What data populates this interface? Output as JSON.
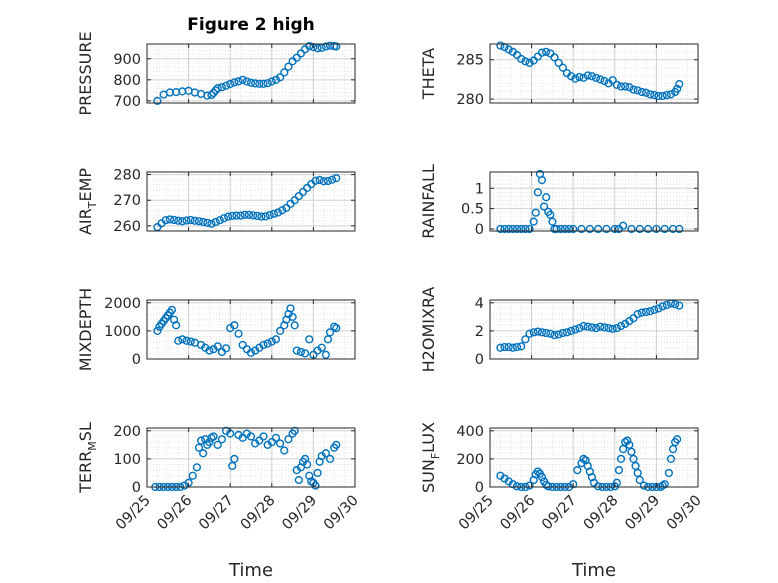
{
  "figure_title": "Figure 2 high",
  "colors": {
    "marker": "#0072bd",
    "axis": "#262626",
    "grid": "#d0d0d0",
    "minor_grid": "#e4e4e4"
  },
  "x_axis": {
    "label": "Time",
    "range": [
      0,
      5
    ],
    "tick_labels": [
      "09/25",
      "09/26",
      "09/27",
      "09/28",
      "09/29",
      "09/30"
    ]
  },
  "chart_data": [
    {
      "type": "scatter",
      "id": "pressure",
      "title": "Figure 2 high",
      "ylabel": "PRESSURE",
      "ylabel_sub": "",
      "ylabel_tail": "",
      "ylim": [
        690,
        970
      ],
      "yticks": [
        700,
        800,
        900
      ],
      "x": [
        0.25,
        0.4,
        0.55,
        0.7,
        0.85,
        1.0,
        1.15,
        1.3,
        1.45,
        1.55,
        1.6,
        1.65,
        1.7,
        1.8,
        1.9,
        2.0,
        2.1,
        2.2,
        2.3,
        2.4,
        2.5,
        2.6,
        2.7,
        2.8,
        2.9,
        3.0,
        3.1,
        3.2,
        3.3,
        3.4,
        3.5,
        3.6,
        3.7,
        3.8,
        3.9,
        4.0,
        4.1,
        4.2,
        4.3,
        4.4,
        4.5,
        4.55
      ],
      "y": [
        700,
        730,
        740,
        742,
        745,
        748,
        740,
        733,
        725,
        728,
        738,
        750,
        760,
        765,
        772,
        780,
        788,
        793,
        800,
        792,
        786,
        783,
        781,
        781,
        784,
        792,
        800,
        812,
        835,
        862,
        888,
        905,
        925,
        945,
        960,
        955,
        950,
        952,
        958,
        962,
        960,
        958
      ]
    },
    {
      "type": "scatter",
      "id": "theta",
      "title": "",
      "ylabel": "THETA",
      "ylabel_sub": "",
      "ylabel_tail": "",
      "ylim": [
        279.5,
        287
      ],
      "yticks": [
        280,
        285
      ],
      "x": [
        0.25,
        0.35,
        0.45,
        0.55,
        0.65,
        0.75,
        0.85,
        0.95,
        1.05,
        1.15,
        1.25,
        1.35,
        1.45,
        1.55,
        1.65,
        1.75,
        1.85,
        1.95,
        2.05,
        2.15,
        2.25,
        2.35,
        2.45,
        2.55,
        2.65,
        2.75,
        2.85,
        2.95,
        3.05,
        3.15,
        3.25,
        3.35,
        3.45,
        3.55,
        3.65,
        3.75,
        3.85,
        3.95,
        4.05,
        4.15,
        4.25,
        4.35,
        4.45,
        4.5,
        4.55
      ],
      "y": [
        286.8,
        286.6,
        286.3,
        286.0,
        285.6,
        285.1,
        284.8,
        284.6,
        284.9,
        285.4,
        285.9,
        286.0,
        285.8,
        285.3,
        284.6,
        284.0,
        283.3,
        282.9,
        282.6,
        282.8,
        282.7,
        283.0,
        282.9,
        282.7,
        282.5,
        282.3,
        282.0,
        282.4,
        281.8,
        281.6,
        281.6,
        281.5,
        281.2,
        281.1,
        280.9,
        280.8,
        280.6,
        280.5,
        280.4,
        280.4,
        280.5,
        280.6,
        280.9,
        281.3,
        281.9
      ]
    },
    {
      "type": "scatter",
      "id": "air-temp",
      "title": "",
      "ylabel": "AIR",
      "ylabel_sub": "T",
      "ylabel_tail": "EMP",
      "ylim": [
        258,
        281
      ],
      "yticks": [
        260,
        270,
        280
      ],
      "x": [
        0.25,
        0.35,
        0.45,
        0.55,
        0.65,
        0.75,
        0.85,
        0.95,
        1.05,
        1.15,
        1.25,
        1.35,
        1.45,
        1.55,
        1.65,
        1.75,
        1.85,
        1.95,
        2.05,
        2.15,
        2.25,
        2.35,
        2.45,
        2.55,
        2.65,
        2.75,
        2.85,
        2.95,
        3.05,
        3.15,
        3.25,
        3.35,
        3.45,
        3.55,
        3.65,
        3.75,
        3.85,
        3.95,
        4.05,
        4.15,
        4.25,
        4.35,
        4.45,
        4.55
      ],
      "y": [
        259.5,
        261,
        262.2,
        262.5,
        262.3,
        262.0,
        261.8,
        262.1,
        262.3,
        262.0,
        261.8,
        261.5,
        261.2,
        260.8,
        261.5,
        262.2,
        263.0,
        263.6,
        263.9,
        264.0,
        264.0,
        264.3,
        264.3,
        264.1,
        263.9,
        263.6,
        263.7,
        264.2,
        264.7,
        265.2,
        266.1,
        267.0,
        268.6,
        270.0,
        271.6,
        273.2,
        274.8,
        276.3,
        277.6,
        277.9,
        277.4,
        277.5,
        278.0,
        278.6
      ]
    },
    {
      "type": "scatter",
      "id": "rainfall",
      "title": "",
      "ylabel": "RAINFALL",
      "ylabel_sub": "",
      "ylabel_tail": "",
      "ylim": [
        -0.05,
        1.4
      ],
      "yticks": [
        0,
        0.5,
        1
      ],
      "x": [
        0.25,
        0.35,
        0.45,
        0.55,
        0.65,
        0.75,
        0.85,
        0.95,
        1.05,
        1.1,
        1.15,
        1.2,
        1.25,
        1.3,
        1.35,
        1.4,
        1.45,
        1.5,
        1.55,
        1.6,
        1.7,
        1.8,
        1.9,
        2.0,
        2.2,
        2.4,
        2.6,
        2.8,
        3.0,
        3.1,
        3.2,
        3.4,
        3.6,
        3.8,
        4.0,
        4.2,
        4.4,
        4.55
      ],
      "y": [
        0,
        0,
        0,
        0,
        0,
        0,
        0,
        0,
        0.18,
        0.4,
        0.9,
        1.35,
        1.2,
        0.55,
        0.78,
        0.42,
        0.35,
        0.18,
        0,
        0,
        0,
        0,
        0,
        0,
        0,
        0,
        0,
        0,
        0,
        0,
        0.08,
        0,
        0,
        0,
        0,
        0,
        0,
        0
      ]
    },
    {
      "type": "scatter",
      "id": "mixdepth",
      "title": "",
      "ylabel": "MIXDEPTH",
      "ylabel_sub": "",
      "ylabel_tail": "",
      "ylim": [
        0,
        2100
      ],
      "yticks": [
        0,
        1000,
        2000
      ],
      "x": [
        0.25,
        0.3,
        0.35,
        0.4,
        0.45,
        0.5,
        0.55,
        0.6,
        0.65,
        0.7,
        0.75,
        0.85,
        0.95,
        1.05,
        1.15,
        1.3,
        1.4,
        1.5,
        1.6,
        1.7,
        1.8,
        1.9,
        2.0,
        2.1,
        2.2,
        2.3,
        2.4,
        2.5,
        2.6,
        2.7,
        2.8,
        2.9,
        3.0,
        3.1,
        3.2,
        3.3,
        3.35,
        3.4,
        3.45,
        3.5,
        3.55,
        3.6,
        3.7,
        3.8,
        3.9,
        4.0,
        4.1,
        4.2,
        4.3,
        4.35,
        4.4,
        4.5,
        4.55
      ],
      "y": [
        1000,
        1150,
        1250,
        1350,
        1450,
        1550,
        1650,
        1750,
        1400,
        1200,
        650,
        700,
        650,
        620,
        580,
        500,
        400,
        300,
        350,
        450,
        250,
        380,
        1100,
        1200,
        900,
        500,
        350,
        220,
        300,
        400,
        500,
        550,
        620,
        700,
        1000,
        1200,
        1400,
        1600,
        1800,
        1500,
        1200,
        300,
        250,
        200,
        700,
        150,
        300,
        400,
        150,
        700,
        950,
        1150,
        1100
      ]
    },
    {
      "type": "scatter",
      "id": "h2omixra",
      "title": "",
      "ylabel": "H2OMIXRA",
      "ylabel_sub": "",
      "ylabel_tail": "",
      "ylim": [
        0,
        4.2
      ],
      "yticks": [
        0,
        2,
        4
      ],
      "x": [
        0.25,
        0.35,
        0.45,
        0.55,
        0.65,
        0.75,
        0.85,
        0.95,
        1.05,
        1.15,
        1.25,
        1.35,
        1.45,
        1.55,
        1.65,
        1.75,
        1.85,
        1.95,
        2.05,
        2.15,
        2.25,
        2.35,
        2.45,
        2.55,
        2.65,
        2.75,
        2.85,
        2.95,
        3.05,
        3.15,
        3.25,
        3.35,
        3.45,
        3.55,
        3.65,
        3.75,
        3.85,
        3.95,
        4.05,
        4.15,
        4.25,
        4.35,
        4.45,
        4.55
      ],
      "y": [
        0.8,
        0.85,
        0.85,
        0.8,
        0.85,
        0.9,
        1.4,
        1.8,
        1.9,
        1.95,
        1.9,
        1.85,
        1.8,
        1.7,
        1.75,
        1.85,
        1.9,
        2.0,
        2.1,
        2.2,
        2.35,
        2.3,
        2.25,
        2.2,
        2.3,
        2.25,
        2.2,
        2.15,
        2.2,
        2.35,
        2.5,
        2.7,
        2.9,
        3.2,
        3.3,
        3.35,
        3.4,
        3.5,
        3.6,
        3.75,
        3.85,
        3.95,
        3.9,
        3.8
      ]
    },
    {
      "type": "scatter",
      "id": "terr-msl",
      "title": "",
      "ylabel": "TERR",
      "ylabel_sub": "M",
      "ylabel_tail": "SL",
      "ylim": [
        0,
        210
      ],
      "yticks": [
        0,
        100,
        200
      ],
      "x": [
        0.2,
        0.3,
        0.4,
        0.5,
        0.6,
        0.7,
        0.8,
        0.9,
        1.0,
        1.1,
        1.2,
        1.25,
        1.3,
        1.35,
        1.4,
        1.45,
        1.5,
        1.55,
        1.6,
        1.7,
        1.8,
        1.9,
        2.0,
        2.05,
        2.1,
        2.2,
        2.3,
        2.4,
        2.5,
        2.6,
        2.7,
        2.8,
        2.9,
        3.0,
        3.1,
        3.2,
        3.3,
        3.4,
        3.5,
        3.55,
        3.6,
        3.65,
        3.7,
        3.75,
        3.8,
        3.85,
        3.9,
        3.95,
        4.0,
        4.05,
        4.1,
        4.15,
        4.2,
        4.3,
        4.4,
        4.5,
        4.55
      ],
      "y": [
        0,
        0,
        0,
        0,
        0,
        0,
        0,
        5,
        15,
        40,
        70,
        140,
        165,
        120,
        170,
        150,
        160,
        175,
        180,
        150,
        170,
        200,
        190,
        75,
        100,
        185,
        175,
        190,
        180,
        155,
        165,
        180,
        150,
        160,
        175,
        155,
        130,
        170,
        190,
        200,
        60,
        25,
        70,
        90,
        100,
        80,
        40,
        20,
        15,
        5,
        50,
        90,
        110,
        120,
        100,
        140,
        150
      ]
    },
    {
      "type": "scatter",
      "id": "sun-flux",
      "title": "",
      "ylabel": "SUN",
      "ylabel_sub": "F",
      "ylabel_tail": "LUX",
      "ylim": [
        0,
        420
      ],
      "yticks": [
        0,
        200,
        400
      ],
      "x": [
        0.25,
        0.35,
        0.45,
        0.55,
        0.65,
        0.75,
        0.85,
        0.95,
        1.05,
        1.1,
        1.15,
        1.2,
        1.25,
        1.3,
        1.35,
        1.4,
        1.5,
        1.6,
        1.7,
        1.8,
        1.9,
        2.0,
        2.1,
        2.2,
        2.25,
        2.3,
        2.35,
        2.4,
        2.45,
        2.5,
        2.6,
        2.7,
        2.8,
        2.9,
        3.0,
        3.05,
        3.1,
        3.15,
        3.2,
        3.25,
        3.3,
        3.35,
        3.4,
        3.45,
        3.5,
        3.55,
        3.6,
        3.7,
        3.8,
        3.9,
        4.0,
        4.1,
        4.15,
        4.2,
        4.3,
        4.35,
        4.4,
        4.45,
        4.5
      ],
      "y": [
        80,
        60,
        40,
        20,
        5,
        0,
        0,
        10,
        50,
        90,
        110,
        95,
        70,
        40,
        15,
        5,
        0,
        0,
        0,
        0,
        0,
        20,
        120,
        170,
        200,
        190,
        150,
        110,
        70,
        30,
        5,
        0,
        0,
        0,
        5,
        30,
        120,
        200,
        270,
        320,
        330,
        300,
        250,
        200,
        150,
        100,
        50,
        10,
        0,
        0,
        0,
        0,
        10,
        20,
        100,
        200,
        270,
        320,
        340
      ]
    }
  ]
}
